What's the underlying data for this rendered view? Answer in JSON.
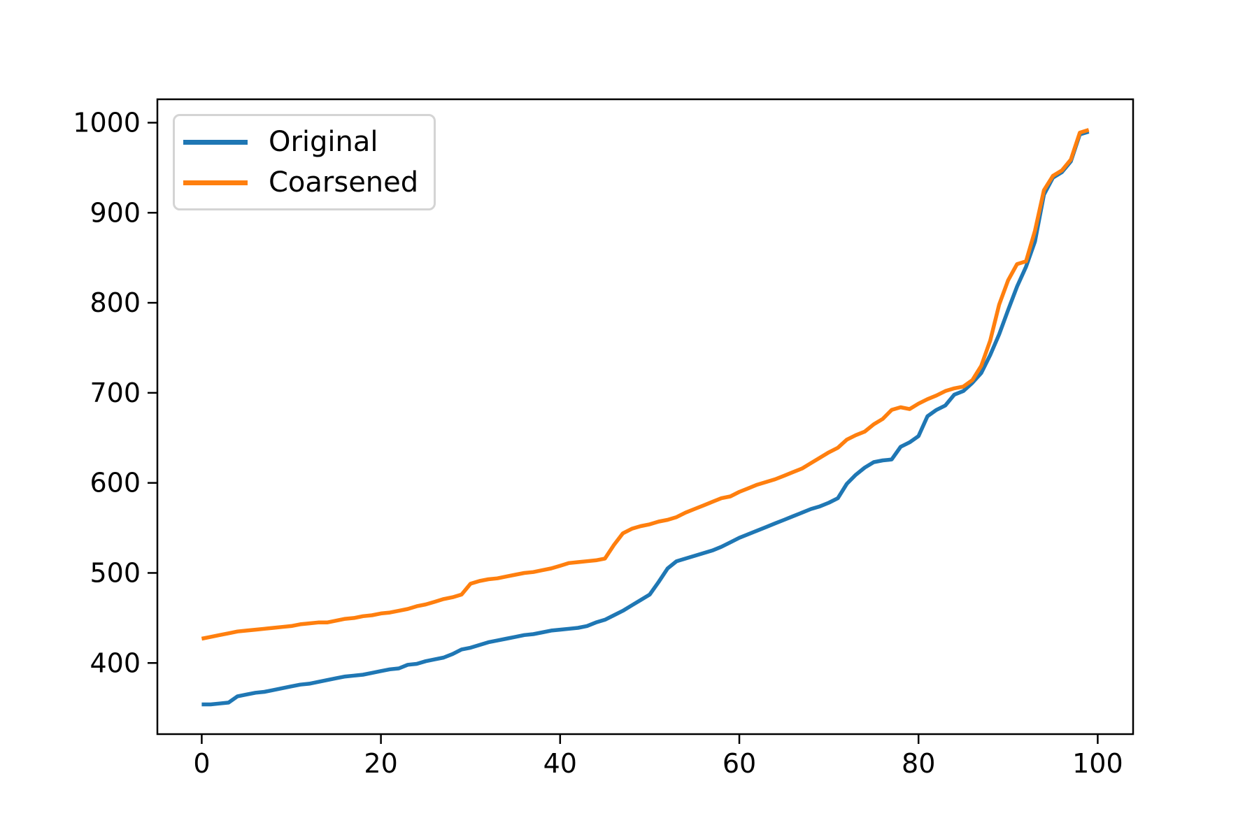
{
  "figure": {
    "background": "#ffffff",
    "axes_color": "#000000"
  },
  "legend": {
    "position": "upper left",
    "entries": [
      {
        "label": "Original",
        "color": "#1f77b4"
      },
      {
        "label": "Coarsened",
        "color": "#ff7f0e"
      }
    ]
  },
  "chart_data": {
    "type": "line",
    "title": "",
    "xlabel": "",
    "ylabel": "",
    "grid": false,
    "legend_position": "upper left",
    "x_start": 0,
    "x_step": 1,
    "n_points": 100,
    "xlim": [
      -4.95,
      103.95
    ],
    "ylim": [
      321,
      1026
    ],
    "xticks": [
      0,
      20,
      40,
      60,
      80,
      100
    ],
    "yticks": [
      400,
      500,
      600,
      700,
      800,
      900,
      1000
    ],
    "series": [
      {
        "name": "Original",
        "color": "#1f77b4",
        "values": [
          354,
          354,
          355,
          356,
          363,
          365,
          367,
          368,
          370,
          372,
          374,
          376,
          377,
          379,
          381,
          383,
          385,
          386,
          387,
          389,
          391,
          393,
          394,
          398,
          399,
          402,
          404,
          406,
          410,
          415,
          417,
          420,
          423,
          425,
          427,
          429,
          431,
          432,
          434,
          436,
          437,
          438,
          439,
          441,
          445,
          448,
          453,
          458,
          464,
          470,
          476,
          490,
          505,
          513,
          516,
          519,
          522,
          525,
          529,
          534,
          539,
          543,
          547,
          551,
          555,
          559,
          563,
          567,
          571,
          574,
          578,
          583,
          599,
          609,
          617,
          623,
          625,
          626,
          640,
          645,
          652,
          674,
          681,
          686,
          698,
          702,
          711,
          722,
          742,
          765,
          792,
          818,
          840,
          868,
          920,
          939,
          945,
          957,
          987,
          990
        ]
      },
      {
        "name": "Coarsened",
        "color": "#ff7f0e",
        "values": [
          427,
          429,
          431,
          433,
          435,
          436,
          437,
          438,
          439,
          440,
          441,
          443,
          444,
          445,
          445,
          447,
          449,
          450,
          452,
          453,
          455,
          456,
          458,
          460,
          463,
          465,
          468,
          471,
          473,
          476,
          488,
          491,
          493,
          494,
          496,
          498,
          500,
          501,
          503,
          505,
          508,
          511,
          512,
          513,
          514,
          516,
          531,
          544,
          549,
          552,
          554,
          557,
          559,
          562,
          567,
          571,
          575,
          579,
          583,
          585,
          590,
          594,
          598,
          601,
          604,
          608,
          612,
          616,
          622,
          628,
          634,
          639,
          648,
          653,
          657,
          665,
          671,
          681,
          684,
          682,
          688,
          693,
          697,
          702,
          705,
          707,
          714,
          730,
          758,
          798,
          825,
          843,
          846,
          880,
          925,
          941,
          947,
          959,
          989,
          992
        ]
      }
    ]
  }
}
